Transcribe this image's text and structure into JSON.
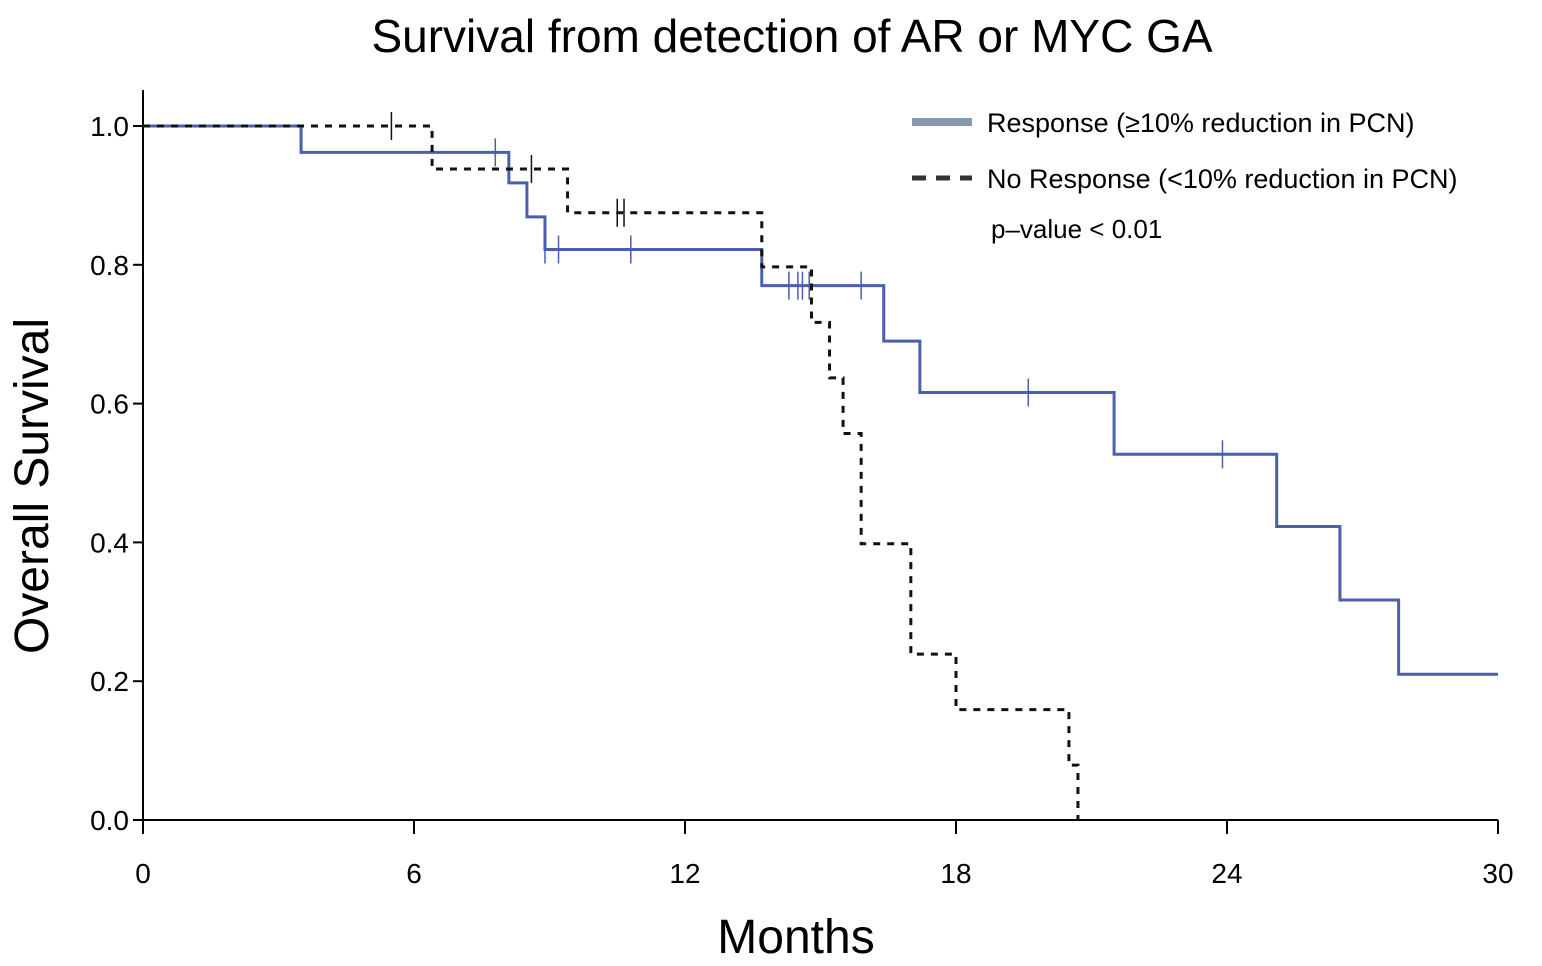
{
  "chart_data": {
    "type": "line",
    "subtype": "kaplan-meier",
    "title": "Survival from detection of AR or MYC GA",
    "xlabel": "Months",
    "ylabel": "Overall Survival",
    "xlim": [
      0,
      30
    ],
    "ylim": [
      0,
      1.0
    ],
    "xticks": [
      0,
      6,
      12,
      18,
      24,
      30
    ],
    "xtick_labels": [
      "0",
      "6",
      "12",
      "18",
      "24",
      "30"
    ],
    "yticks": [
      0.0,
      0.2,
      0.4,
      0.6,
      0.8,
      1.0
    ],
    "ytick_labels": [
      "0.0",
      "0.2",
      "0.4",
      "0.6",
      "0.8",
      "1.0"
    ],
    "grid": false,
    "legend_position": "top-right",
    "annotation": "p–value  < 0.01",
    "series": [
      {
        "name": "Response (≥10% reduction in PCN)",
        "color": "#4a5fad",
        "legend_color": "#8898b0",
        "style": "solid",
        "steps": [
          [
            0,
            1.0
          ],
          [
            3.5,
            0.962
          ],
          [
            8.1,
            0.918
          ],
          [
            8.5,
            0.869
          ],
          [
            8.9,
            0.822
          ],
          [
            13.7,
            0.77
          ],
          [
            16.4,
            0.69
          ],
          [
            17.2,
            0.616
          ],
          [
            21.5,
            0.527
          ],
          [
            25.1,
            0.423
          ],
          [
            26.5,
            0.317
          ],
          [
            27.8,
            0.21
          ]
        ],
        "end_x": 30,
        "censored": [
          7.8,
          8.9,
          9.2,
          10.8,
          14.3,
          14.5,
          14.6,
          14.75,
          15.9,
          19.6,
          23.9
        ]
      },
      {
        "name": "No Response (<10% reduction in PCN)",
        "color": "#111111",
        "legend_color": "#333333",
        "style": "dashed",
        "steps": [
          [
            0,
            1.0
          ],
          [
            6.4,
            0.938
          ],
          [
            9.4,
            0.875
          ],
          [
            13.7,
            0.797
          ],
          [
            14.8,
            0.717
          ],
          [
            15.2,
            0.637
          ],
          [
            15.5,
            0.557
          ],
          [
            15.9,
            0.398
          ],
          [
            17.0,
            0.239
          ],
          [
            18.0,
            0.159
          ],
          [
            20.5,
            0.079
          ],
          [
            20.7,
            0.0
          ]
        ],
        "end_x": 20.7,
        "censored": [
          5.5,
          8.6,
          10.5,
          10.65
        ]
      }
    ]
  }
}
